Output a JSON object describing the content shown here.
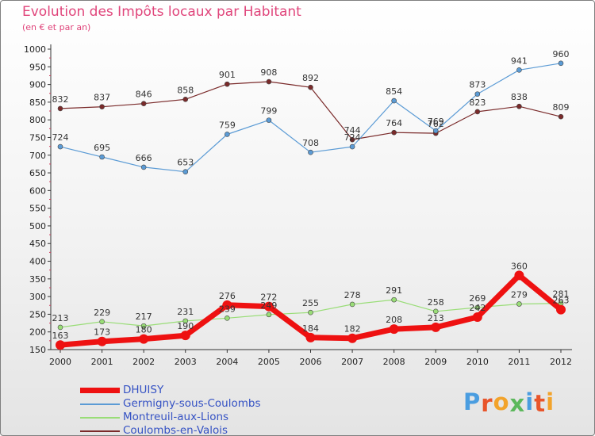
{
  "title": "Evolution des Impôts locaux par Habitant",
  "subtitle": "(en € et par an)",
  "logo_text": "Proxiti",
  "logo_colors": [
    "#4a9de0",
    "#e8552b",
    "#f2a32b",
    "#5cb85c",
    "#4a9de0",
    "#e8552b",
    "#f2a32b"
  ],
  "chart_data": {
    "type": "line",
    "title": "Evolution des Impôts locaux par Habitant",
    "subtitle": "(en € et par an)",
    "xlabel": "",
    "ylabel": "",
    "ylim": [
      150,
      1000
    ],
    "yticks": [
      150,
      200,
      250,
      300,
      350,
      400,
      450,
      500,
      550,
      600,
      650,
      700,
      750,
      800,
      850,
      900,
      950,
      1000
    ],
    "grid": false,
    "legend_position": "bottom-left",
    "categories": [
      "2000",
      "2001",
      "2002",
      "2003",
      "2004",
      "2005",
      "2006",
      "2007",
      "2008",
      "2009",
      "2010",
      "2011",
      "2012"
    ],
    "series": [
      {
        "name": "Coulombs-en-Valois",
        "color": "#7a2a2a",
        "values": [
          832,
          837,
          846,
          858,
          901,
          908,
          892,
          744,
          764,
          762,
          823,
          838,
          809
        ]
      },
      {
        "name": "Germigny-sous-Coulombs",
        "color": "#5b9bd5",
        "values": [
          724,
          695,
          666,
          653,
          759,
          799,
          708,
          724,
          854,
          769,
          873,
          941,
          960
        ]
      },
      {
        "name": "Montreuil-aux-Lions",
        "color": "#99dd77",
        "values": [
          213,
          229,
          217,
          231,
          239,
          249,
          255,
          278,
          291,
          258,
          269,
          279,
          281
        ]
      },
      {
        "name": "DHUISY",
        "color": "#ee1111",
        "values": [
          163,
          173,
          180,
          190,
          276,
          272,
          184,
          182,
          208,
          213,
          242,
          360,
          263
        ]
      }
    ],
    "legend_order": [
      "DHUISY",
      "Germigny-sous-Coulombs",
      "Montreuil-aux-Lions",
      "Coulombs-en-Valois"
    ]
  }
}
